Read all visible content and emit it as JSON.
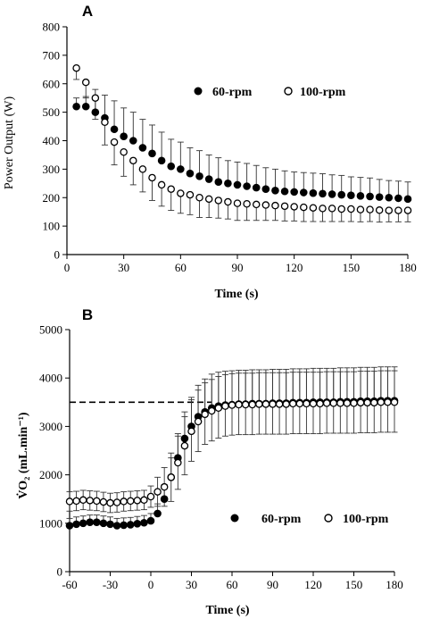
{
  "chart_data": [
    {
      "type": "scatter",
      "panel_label": "A",
      "title": "",
      "xlabel": "Time (s)",
      "ylabel": "Power Output (W)",
      "xlim": [
        0,
        180
      ],
      "ylim": [
        0,
        800
      ],
      "xticks": [
        0,
        30,
        60,
        90,
        120,
        150,
        180
      ],
      "yticks": [
        0,
        100,
        200,
        300,
        400,
        500,
        600,
        700,
        800
      ],
      "grid": false,
      "legend_position": "upper-right",
      "x": [
        5,
        10,
        15,
        20,
        25,
        30,
        35,
        40,
        45,
        50,
        55,
        60,
        65,
        70,
        75,
        80,
        85,
        90,
        95,
        100,
        105,
        110,
        115,
        120,
        125,
        130,
        135,
        140,
        145,
        150,
        155,
        160,
        165,
        170,
        175,
        180
      ],
      "series": [
        {
          "name": "60-rpm",
          "marker": "filled-circle",
          "color": "#000000",
          "values": [
            520,
            520,
            500,
            480,
            440,
            415,
            400,
            375,
            355,
            330,
            310,
            300,
            285,
            275,
            265,
            255,
            250,
            245,
            240,
            235,
            230,
            225,
            222,
            220,
            218,
            216,
            214,
            212,
            210,
            208,
            206,
            204,
            202,
            200,
            198,
            195
          ],
          "error_plus": [
            30,
            35,
            80,
            80,
            100,
            100,
            100,
            100,
            100,
            100,
            95,
            95,
            90,
            90,
            85,
            85,
            80,
            80,
            80,
            78,
            75,
            75,
            72,
            70,
            70,
            70,
            70,
            68,
            68,
            65,
            65,
            65,
            62,
            60,
            60,
            60
          ]
        },
        {
          "name": "100-rpm",
          "marker": "open-circle",
          "color": "#000000",
          "values": [
            655,
            605,
            550,
            465,
            395,
            360,
            330,
            300,
            270,
            245,
            230,
            215,
            210,
            200,
            195,
            190,
            185,
            180,
            178,
            176,
            174,
            172,
            170,
            168,
            166,
            164,
            162,
            162,
            160,
            160,
            158,
            158,
            156,
            155,
            155,
            155
          ],
          "error_minus": [
            40,
            55,
            75,
            80,
            80,
            85,
            85,
            80,
            80,
            75,
            75,
            70,
            70,
            70,
            65,
            62,
            60,
            60,
            58,
            56,
            54,
            52,
            52,
            50,
            50,
            48,
            46,
            46,
            44,
            44,
            43,
            42,
            42,
            40,
            40,
            40
          ]
        }
      ]
    },
    {
      "type": "scatter",
      "panel_label": "B",
      "title": "",
      "xlabel": "Time (s)",
      "ylabel": "V̇O₂ (mL.min⁻¹)",
      "xlim": [
        -60,
        180
      ],
      "ylim": [
        0,
        5000
      ],
      "xticks": [
        -60,
        -30,
        0,
        30,
        60,
        90,
        120,
        150,
        180
      ],
      "yticks": [
        0,
        1000,
        2000,
        3000,
        4000,
        5000
      ],
      "grid": false,
      "reference_line": {
        "style": "dashed",
        "y": 3500
      },
      "legend_position": "lower-right",
      "x": [
        -60,
        -55,
        -50,
        -45,
        -40,
        -35,
        -30,
        -25,
        -20,
        -15,
        -10,
        -5,
        0,
        5,
        10,
        15,
        20,
        25,
        30,
        35,
        40,
        45,
        50,
        55,
        60,
        65,
        70,
        75,
        80,
        85,
        90,
        95,
        100,
        105,
        110,
        115,
        120,
        125,
        130,
        135,
        140,
        145,
        150,
        155,
        160,
        165,
        170,
        175,
        180
      ],
      "series": [
        {
          "name": "60-rpm",
          "marker": "filled-circle",
          "color": "#000000",
          "values": [
            950,
            980,
            1000,
            1020,
            1020,
            1000,
            980,
            950,
            960,
            970,
            990,
            1010,
            1050,
            1200,
            1500,
            1950,
            2350,
            2750,
            3000,
            3200,
            3300,
            3380,
            3420,
            3440,
            3450,
            3460,
            3460,
            3470,
            3470,
            3470,
            3480,
            3480,
            3480,
            3490,
            3490,
            3490,
            3500,
            3500,
            3500,
            3500,
            3510,
            3510,
            3510,
            3520,
            3520,
            3520,
            3530,
            3530,
            3530
          ],
          "error_plus": [
            150,
            150,
            150,
            150,
            150,
            150,
            150,
            150,
            150,
            150,
            150,
            150,
            150,
            200,
            300,
            400,
            500,
            550,
            600,
            650,
            680,
            700,
            700,
            700,
            700,
            700,
            700,
            700,
            700,
            700,
            700,
            700,
            700,
            700,
            700,
            700,
            700,
            700,
            700,
            700,
            700,
            700,
            700,
            700,
            700,
            700,
            700,
            700,
            700
          ]
        },
        {
          "name": "100-rpm",
          "marker": "open-circle",
          "color": "#000000",
          "values": [
            1450,
            1460,
            1480,
            1470,
            1460,
            1440,
            1420,
            1430,
            1450,
            1460,
            1470,
            1480,
            1550,
            1650,
            1750,
            1950,
            2250,
            2600,
            2900,
            3100,
            3250,
            3320,
            3380,
            3420,
            3440,
            3450,
            3450,
            3450,
            3460,
            3460,
            3460,
            3460,
            3460,
            3470,
            3470,
            3470,
            3470,
            3470,
            3480,
            3480,
            3480,
            3480,
            3480,
            3490,
            3490,
            3490,
            3500,
            3500,
            3500
          ],
          "error_plus": [
            200,
            200,
            200,
            200,
            200,
            200,
            200,
            200,
            200,
            200,
            200,
            200,
            220,
            300,
            400,
            500,
            550,
            600,
            650,
            650,
            650,
            650,
            650,
            650,
            650,
            650,
            650,
            650,
            650,
            650,
            650,
            650,
            650,
            650,
            650,
            650,
            650,
            650,
            650,
            650,
            650,
            650,
            650,
            650,
            650,
            650,
            650,
            650,
            650
          ],
          "error_minus": [
            200,
            200,
            200,
            200,
            200,
            200,
            200,
            200,
            200,
            200,
            200,
            200,
            220,
            300,
            400,
            500,
            550,
            600,
            620,
            620,
            620,
            620,
            620,
            620,
            620,
            620,
            620,
            620,
            620,
            620,
            620,
            620,
            620,
            620,
            620,
            620,
            620,
            620,
            620,
            620,
            620,
            620,
            620,
            620,
            620,
            620,
            620,
            620,
            620
          ]
        }
      ]
    }
  ]
}
